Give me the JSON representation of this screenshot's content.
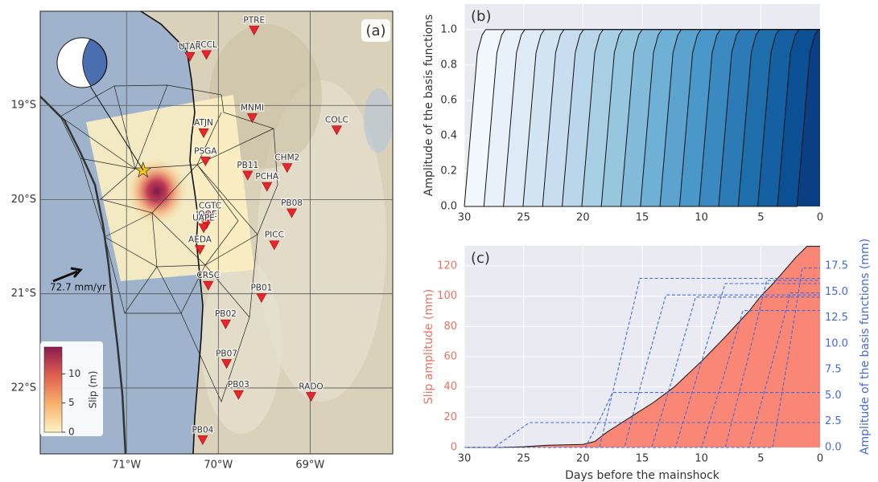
{
  "chart_data": [
    {
      "type": "map",
      "panel_label": "(a)",
      "xlim": [
        -71.94,
        -68.1
      ],
      "ylim": [
        -22.7,
        -18.0
      ],
      "xticks": [
        {
          "value": -71,
          "label": "71°W"
        },
        {
          "value": -70,
          "label": "70°W"
        },
        {
          "value": -69,
          "label": "69°W"
        }
      ],
      "yticks": [
        {
          "value": -19,
          "label": "19°S"
        },
        {
          "value": -20,
          "label": "20°S"
        },
        {
          "value": -21,
          "label": "21°S"
        },
        {
          "value": -22,
          "label": "22°S"
        }
      ],
      "grid": true,
      "station_color": "#e8242c",
      "stations": [
        {
          "name": "PTRE",
          "lon": -69.61,
          "lat": -18.2
        },
        {
          "name": "PCCL",
          "lon": -70.13,
          "lat": -18.46
        },
        {
          "name": "UTAR",
          "lon": -70.31,
          "lat": -18.48
        },
        {
          "name": "MNMI",
          "lon": -69.63,
          "lat": -19.13
        },
        {
          "name": "ATJN",
          "lon": -70.16,
          "lat": -19.29
        },
        {
          "name": "COLC",
          "lon": -68.71,
          "lat": -19.26
        },
        {
          "name": "PSGA",
          "lon": -70.14,
          "lat": -19.59
        },
        {
          "name": "CHM2",
          "lon": -69.25,
          "lat": -19.66
        },
        {
          "name": "PB11",
          "lon": -69.68,
          "lat": -19.74
        },
        {
          "name": "PCHA",
          "lon": -69.47,
          "lat": -19.86
        },
        {
          "name": "PB08",
          "lon": -69.2,
          "lat": -20.14
        },
        {
          "name": "CGTC",
          "lon": -70.09,
          "lat": -20.17
        },
        {
          "name": "IQQE",
          "lon": -70.13,
          "lat": -20.26
        },
        {
          "name": "UAPE",
          "lon": -70.16,
          "lat": -20.3
        },
        {
          "name": "AEDA",
          "lon": -70.2,
          "lat": -20.53
        },
        {
          "name": "PICC",
          "lon": -69.39,
          "lat": -20.48
        },
        {
          "name": "CRSC",
          "lon": -70.11,
          "lat": -20.91
        },
        {
          "name": "PB01",
          "lon": -69.53,
          "lat": -21.04
        },
        {
          "name": "PB02",
          "lon": -69.92,
          "lat": -21.32
        },
        {
          "name": "PB07",
          "lon": -69.91,
          "lat": -21.74
        },
        {
          "name": "PB03",
          "lon": -69.78,
          "lat": -22.07
        },
        {
          "name": "RADO",
          "lon": -68.99,
          "lat": -22.09
        },
        {
          "name": "PB04",
          "lon": -70.17,
          "lat": -22.55
        }
      ],
      "epicenter": {
        "lon": -70.82,
        "lat": -19.69,
        "color": "#f5c518"
      },
      "annotation": "72.7 mm/yr",
      "colorbar": {
        "label": "Slip (m)",
        "lim": [
          0,
          14.6
        ],
        "ticks": [
          0,
          5,
          10
        ],
        "colors": [
          "#fdf5c6",
          "#f6b26b",
          "#e0604f",
          "#8b1a4e"
        ]
      }
    },
    {
      "type": "area",
      "panel_label": "(b)",
      "ylabel": "Amplitude of the basis functions",
      "xlim": [
        30,
        0
      ],
      "ylim": [
        0,
        1.145
      ],
      "xticks": [
        30,
        25,
        20,
        15,
        10,
        5,
        0
      ],
      "yticks": [
        {
          "value": 0,
          "label": "0.0"
        },
        {
          "value": 0.2,
          "label": "0.2"
        },
        {
          "value": 0.4,
          "label": "0.4"
        },
        {
          "value": 0.6,
          "label": "0.6"
        },
        {
          "value": 0.8,
          "label": "0.8"
        },
        {
          "value": 1,
          "label": "1.0"
        }
      ],
      "grid": true,
      "background": "#eaeaf2",
      "fill": true,
      "edgecolor": "#111111",
      "ytick_color": "#333333",
      "series": [
        {
          "color": "#f3f8fe",
          "x": [
            30,
            28.9,
            28.5,
            28.2,
            0
          ],
          "values": [
            0,
            0.87,
            0.97,
            1,
            1
          ]
        },
        {
          "color": "#e8f1fa",
          "x": [
            30,
            28.35,
            27.25,
            26.85,
            26.55,
            0
          ],
          "values": [
            0,
            0,
            0.87,
            0.97,
            1,
            1
          ]
        },
        {
          "color": "#deebf7",
          "x": [
            30,
            26.7,
            25.6,
            25.2,
            24.9,
            0
          ],
          "values": [
            0,
            0,
            0.87,
            0.97,
            1,
            1
          ]
        },
        {
          "color": "#d3e4f3",
          "x": [
            30,
            25.05,
            23.95,
            23.55,
            23.25,
            0
          ],
          "values": [
            0,
            0,
            0.87,
            0.97,
            1,
            1
          ]
        },
        {
          "color": "#c8ddf0",
          "x": [
            30,
            23.4,
            22.3,
            21.9,
            21.6,
            0
          ],
          "values": [
            0,
            0,
            0.87,
            0.97,
            1,
            1
          ]
        },
        {
          "color": "#bad6eb",
          "x": [
            30,
            21.75,
            20.65,
            20.25,
            19.95,
            0
          ],
          "values": [
            0,
            0,
            0.87,
            0.97,
            1,
            1
          ]
        },
        {
          "color": "#a9cfe5",
          "x": [
            30,
            20.1,
            19.0,
            18.6,
            18.3,
            0
          ],
          "values": [
            0,
            0,
            0.87,
            0.97,
            1,
            1
          ]
        },
        {
          "color": "#97c6df",
          "x": [
            30,
            18.45,
            17.35,
            16.95,
            16.65,
            0
          ],
          "values": [
            0,
            0,
            0.87,
            0.97,
            1,
            1
          ]
        },
        {
          "color": "#83bbdb",
          "x": [
            30,
            16.8,
            15.7,
            15.3,
            15.0,
            0
          ],
          "values": [
            0,
            0,
            0.87,
            0.97,
            1,
            1
          ]
        },
        {
          "color": "#6fb0d7",
          "x": [
            30,
            15.15,
            14.05,
            13.65,
            13.35,
            0
          ],
          "values": [
            0,
            0,
            0.87,
            0.97,
            1,
            1
          ]
        },
        {
          "color": "#5ca3d0",
          "x": [
            30,
            13.5,
            12.4,
            12.0,
            11.7,
            0
          ],
          "values": [
            0,
            0,
            0.87,
            0.97,
            1,
            1
          ]
        },
        {
          "color": "#4a97c9",
          "x": [
            30,
            11.85,
            10.75,
            10.35,
            10.05,
            0
          ],
          "values": [
            0,
            0,
            0.87,
            0.97,
            1,
            1
          ]
        },
        {
          "color": "#3a89c1",
          "x": [
            30,
            10.2,
            9.1,
            8.7,
            8.4,
            0
          ],
          "values": [
            0,
            0,
            0.87,
            0.97,
            1,
            1
          ]
        },
        {
          "color": "#2c7bb6",
          "x": [
            30,
            8.55,
            7.45,
            7.05,
            6.75,
            0
          ],
          "values": [
            0,
            0,
            0.87,
            0.97,
            1,
            1
          ]
        },
        {
          "color": "#1f6eac",
          "x": [
            30,
            6.9,
            5.8,
            5.4,
            5.1,
            0
          ],
          "values": [
            0,
            0,
            0.87,
            0.97,
            1,
            1
          ]
        },
        {
          "color": "#1460a2",
          "x": [
            30,
            5.25,
            4.15,
            3.75,
            3.45,
            0
          ],
          "values": [
            0,
            0,
            0.87,
            0.97,
            1,
            1
          ]
        },
        {
          "color": "#0b5094",
          "x": [
            30,
            3.6,
            2.5,
            2.1,
            1.8,
            0
          ],
          "values": [
            0,
            0,
            0.87,
            0.97,
            1,
            1
          ]
        },
        {
          "color": "#0a3f84",
          "x": [
            30,
            1.95,
            0.85,
            0.45,
            0.15,
            0
          ],
          "values": [
            0,
            0,
            0.87,
            0.97,
            1,
            1
          ]
        }
      ]
    },
    {
      "type": "area",
      "panel_label": "(c)",
      "xlabel": "Days before the mainshock",
      "ylabel": "Slip amplitude (mm)",
      "y2label": "Amplitude of the basis functions (mm)",
      "xlim": [
        30,
        0
      ],
      "ylim": [
        0,
        133.3
      ],
      "y2lim": [
        0,
        19.44
      ],
      "xticks": [
        30,
        25,
        20,
        15,
        10,
        5,
        0
      ],
      "yticks": [
        0,
        20,
        40,
        60,
        80,
        100,
        120
      ],
      "y2ticks": [
        {
          "value": 0,
          "label": "0.0"
        },
        {
          "value": 2.5,
          "label": "2.5"
        },
        {
          "value": 5,
          "label": "5.0"
        },
        {
          "value": 7.5,
          "label": "7.5"
        },
        {
          "value": 10,
          "label": "10.0"
        },
        {
          "value": 12.5,
          "label": "12.5"
        },
        {
          "value": 15,
          "label": "15.0"
        },
        {
          "value": 17.5,
          "label": "17.5"
        }
      ],
      "grid": true,
      "background": "#eaeaf2",
      "ytick_color": "#f07060",
      "y2tick_color": "#4169e1",
      "series": [
        {
          "color": "#fa8775",
          "fill": true,
          "edgecolor": "#111111",
          "x": [
            30,
            27,
            25,
            23,
            20,
            19,
            18,
            16,
            14,
            12.3,
            10,
            8,
            6,
            5,
            4,
            3,
            2,
            1.1,
            0
          ],
          "values": [
            0,
            0,
            0.5,
            1.5,
            2,
            4,
            10,
            20,
            30,
            40,
            57,
            73,
            90,
            100,
            108,
            117,
            126,
            133,
            133
          ]
        },
        {
          "color": "#4169e1",
          "axis": "y2",
          "linestyle": "dashed",
          "x": [
            30,
            27.5,
            26,
            24.5,
            0
          ],
          "values": [
            0,
            0,
            1.2,
            2.4,
            2.4
          ]
        },
        {
          "color": "#4169e1",
          "axis": "y2",
          "linestyle": "dashed",
          "x": [
            30,
            19.8,
            18.6,
            17.5,
            0
          ],
          "values": [
            0,
            0,
            2.65,
            5.3,
            5.3
          ]
        },
        {
          "color": "#4169e1",
          "axis": "y2",
          "linestyle": "dashed",
          "x": [
            30,
            18.6,
            16.9,
            15.2,
            0
          ],
          "values": [
            0,
            0,
            8.15,
            16.3,
            16.3
          ]
        },
        {
          "color": "#4169e1",
          "axis": "y2",
          "linestyle": "dashed",
          "x": [
            30,
            16.5,
            14.8,
            13.0,
            0
          ],
          "values": [
            0,
            0,
            7.35,
            14.7,
            14.7
          ]
        },
        {
          "color": "#4169e1",
          "axis": "y2",
          "linestyle": "dashed",
          "x": [
            30,
            14.2,
            12.3,
            10.5,
            0
          ],
          "values": [
            0,
            0,
            7.25,
            14.5,
            14.5
          ]
        },
        {
          "color": "#4169e1",
          "axis": "y2",
          "linestyle": "dashed",
          "x": [
            30,
            12.2,
            10.1,
            8.0,
            0
          ],
          "values": [
            0,
            0,
            7.9,
            15.8,
            15.8
          ]
        },
        {
          "color": "#4169e1",
          "axis": "y2",
          "linestyle": "dashed",
          "x": [
            30,
            10,
            8.2,
            6.5,
            0
          ],
          "values": [
            0,
            0,
            6.6,
            13.2,
            13.2
          ]
        },
        {
          "color": "#4169e1",
          "axis": "y2",
          "linestyle": "dashed",
          "x": [
            30,
            8,
            6.2,
            4.5,
            0
          ],
          "values": [
            0,
            0,
            8.05,
            16.1,
            16.1
          ]
        },
        {
          "color": "#4169e1",
          "axis": "y2",
          "linestyle": "dashed",
          "x": [
            30,
            6,
            4.2,
            2.5,
            0
          ],
          "values": [
            0,
            0,
            7.45,
            14.9,
            14.9
          ]
        },
        {
          "color": "#4169e1",
          "axis": "y2",
          "linestyle": "dashed",
          "x": [
            30,
            4,
            2.7,
            1.5,
            0
          ],
          "values": [
            0,
            0,
            8.65,
            17.3,
            17.3
          ]
        }
      ]
    }
  ]
}
